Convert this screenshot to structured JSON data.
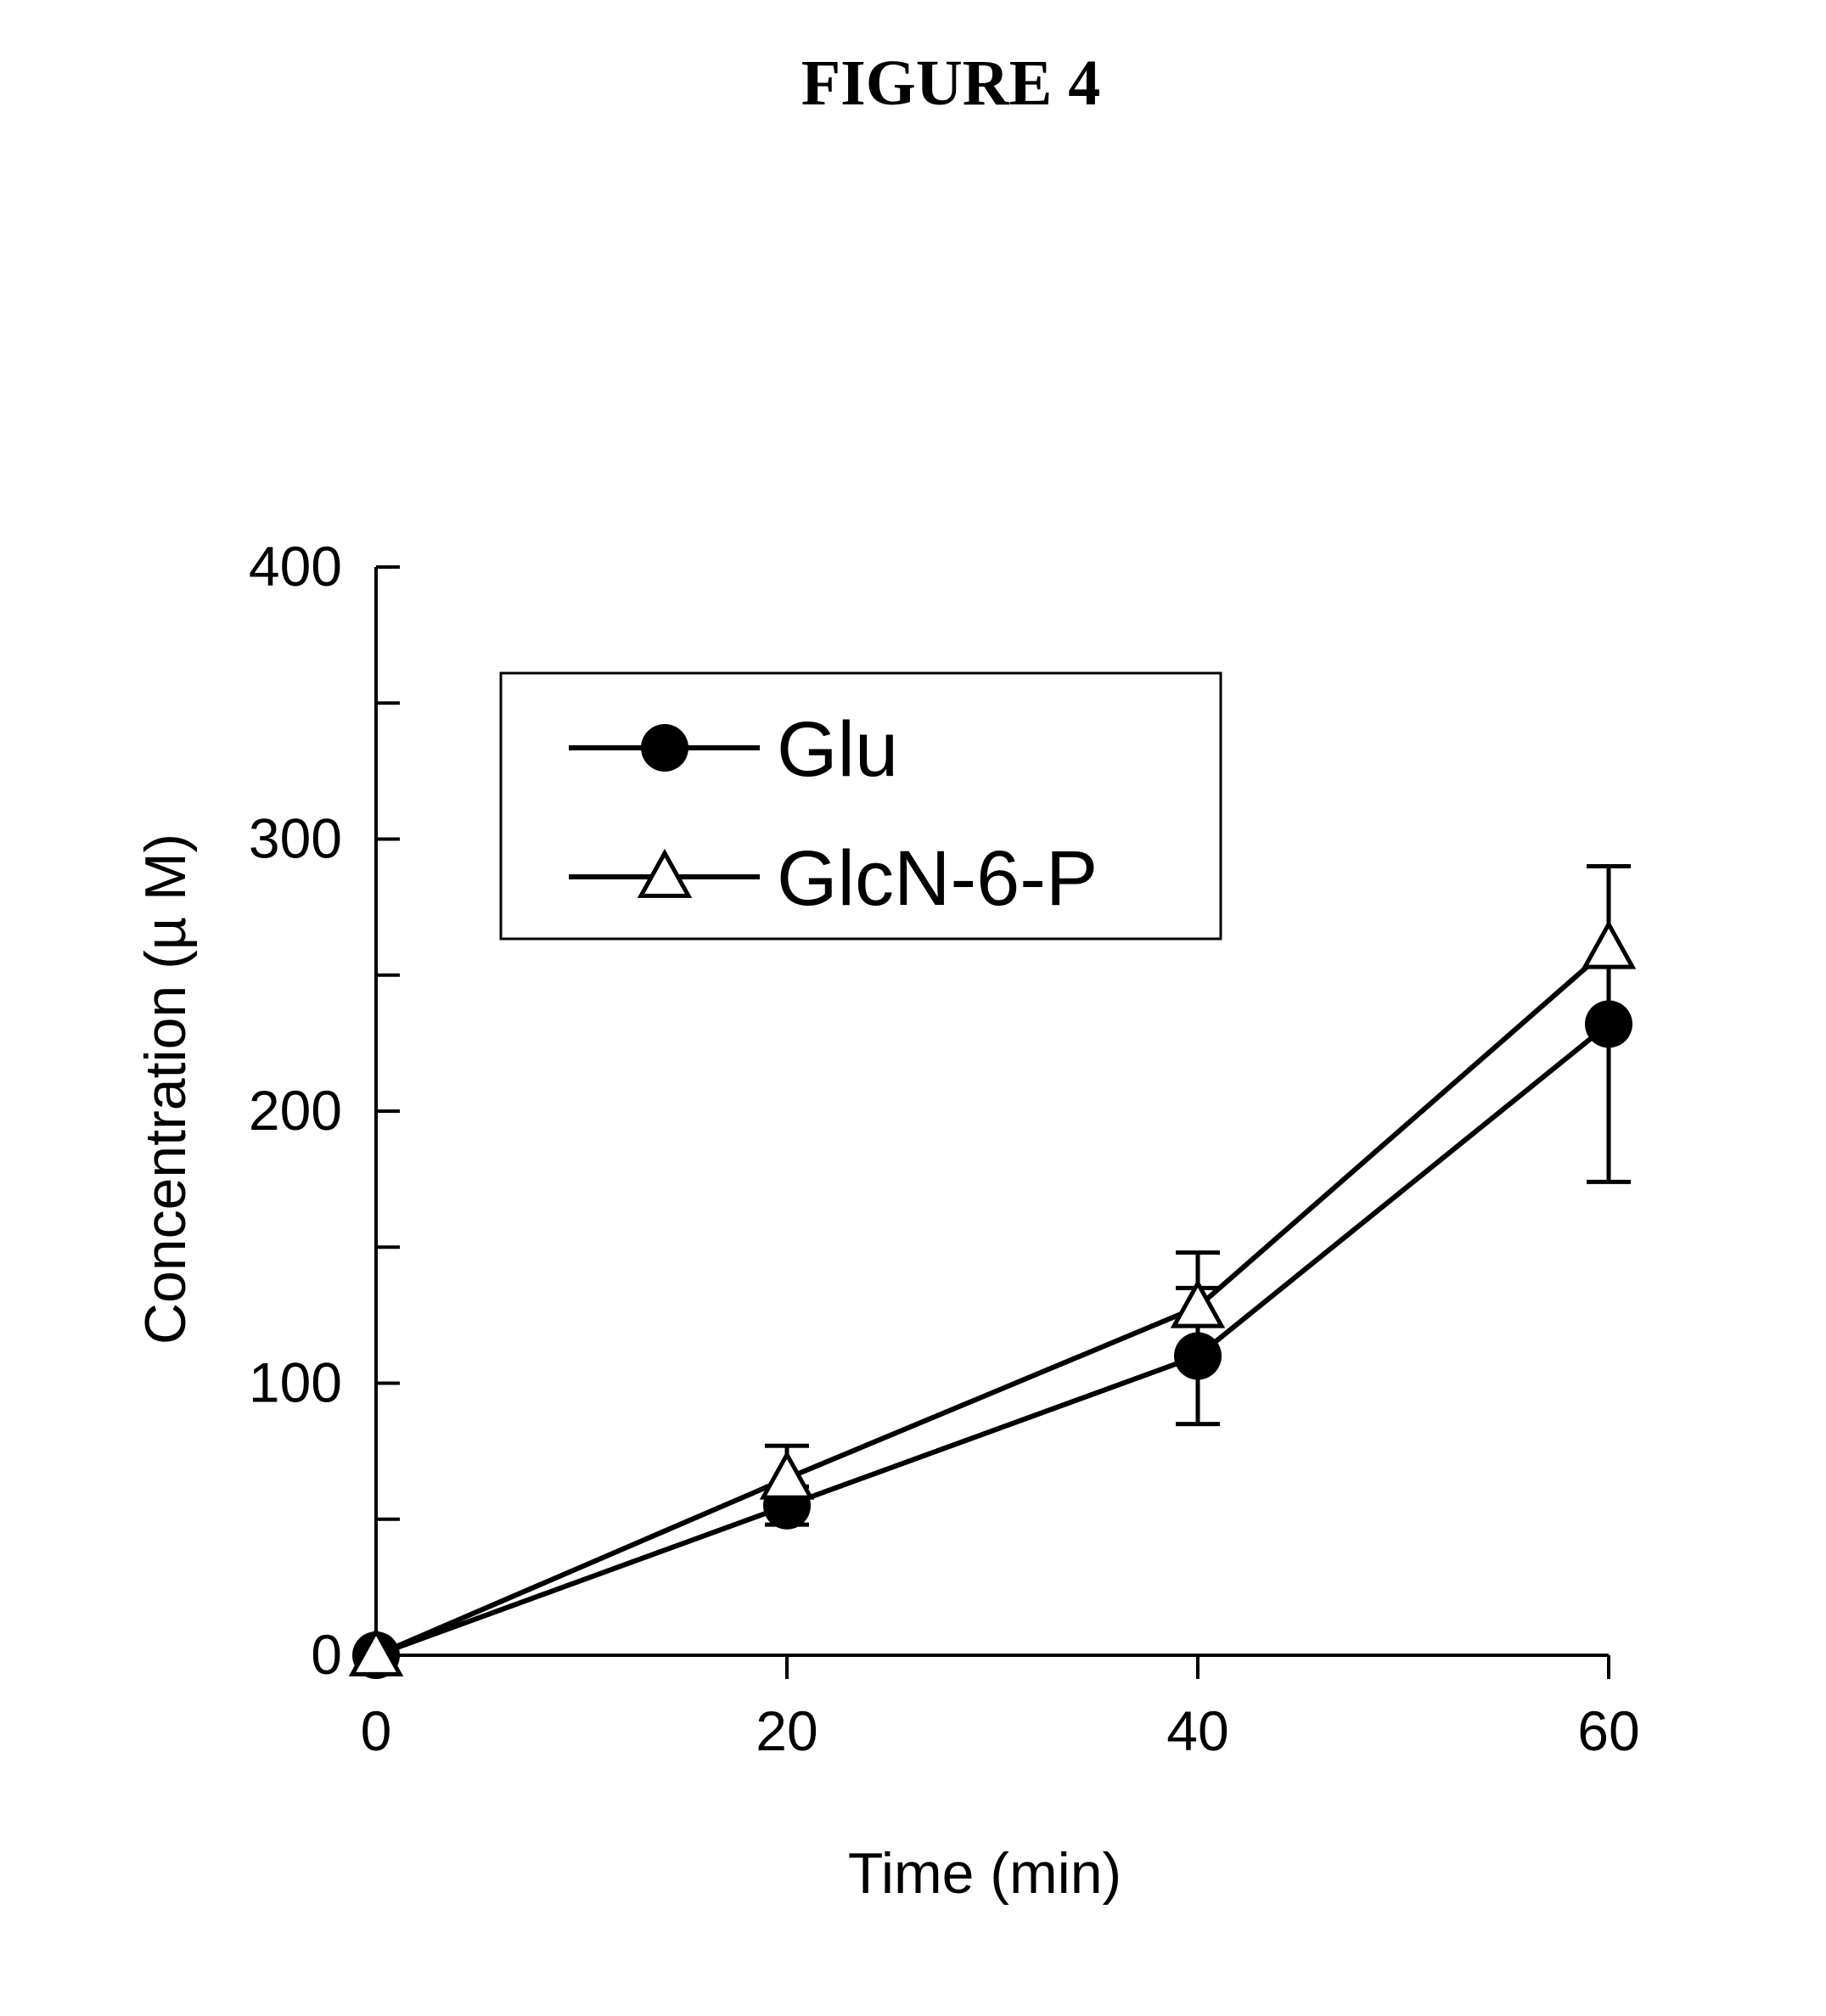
{
  "figure": {
    "title": "FIGURE 4"
  },
  "chart_data": {
    "type": "line",
    "title": "FIGURE 4",
    "xlabel": "Time (min)",
    "ylabel": "Concentration (µ M)",
    "x": [
      0,
      20,
      40,
      60
    ],
    "xticks": [
      0,
      20,
      40,
      60
    ],
    "xtick_labels": [
      "0",
      "20",
      "40",
      "60"
    ],
    "yticks": [
      0,
      100,
      200,
      300,
      400
    ],
    "ytick_labels": [
      "0",
      "100",
      "200",
      "300",
      "400"
    ],
    "yminor": [
      50,
      150,
      250,
      350
    ],
    "xlim": [
      0,
      60
    ],
    "ylim": [
      0,
      400
    ],
    "grid": false,
    "legend": "top-left",
    "series": [
      {
        "name": "Glu",
        "marker": "filled-circle",
        "values": [
          0,
          55,
          110,
          232
        ],
        "error": [
          0,
          7,
          25,
          58
        ]
      },
      {
        "name": "GlcN-6-P",
        "marker": "open-triangle",
        "values": [
          0,
          65,
          128,
          260
        ],
        "error": [
          0,
          12,
          20,
          30
        ]
      }
    ]
  }
}
